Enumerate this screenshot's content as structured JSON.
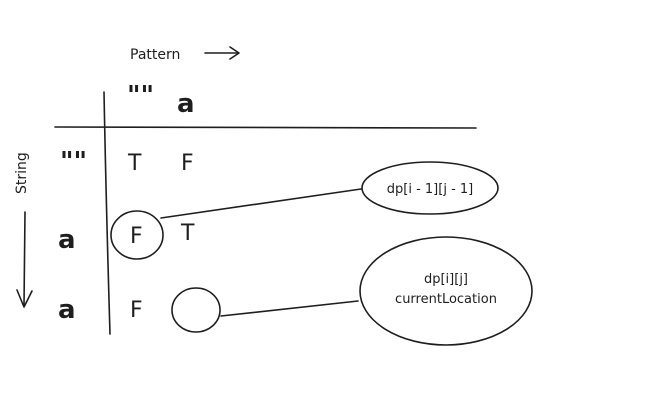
{
  "axes": {
    "pattern_label": "Pattern",
    "string_label": "String"
  },
  "table": {
    "column_headers": [
      "\"\"",
      "a"
    ],
    "row_headers": [
      "\"\"",
      "a",
      "a"
    ],
    "cells": [
      [
        "T",
        "F"
      ],
      [
        "F",
        "T"
      ],
      [
        "F",
        ""
      ]
    ]
  },
  "annotations": {
    "prev_diagonal": "dp[i - 1][j - 1]",
    "current_line1": "dp[i][j]",
    "current_line2": "currentLocation"
  }
}
